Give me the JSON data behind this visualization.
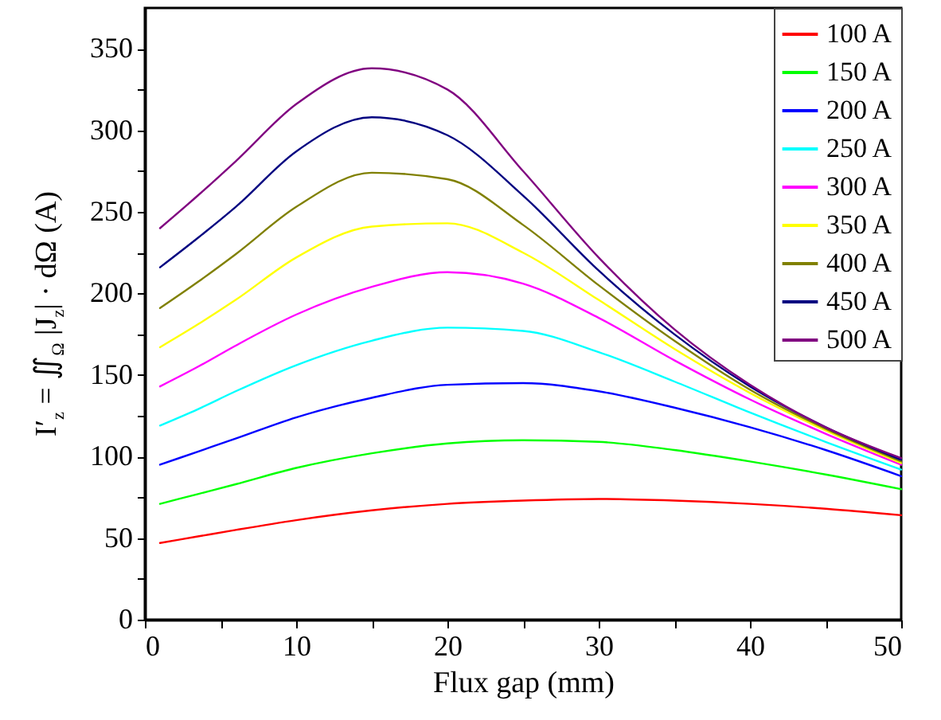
{
  "chart_data": {
    "type": "line",
    "xlabel": "Flux gap (mm)",
    "ylabel": "I′$_{z}$ = ∬$_{Ω}$ |J$_{z}$| · dΩ (A)",
    "x": [
      1,
      3.5,
      6,
      10,
      15,
      20,
      25,
      30,
      35,
      40,
      45,
      50
    ],
    "series": [
      {
        "name": "100 A",
        "color": "#ff0000",
        "values": [
          47,
          51,
          55,
          61,
          67,
          71,
          73,
          74,
          73,
          71,
          68,
          64
        ]
      },
      {
        "name": "150 A",
        "color": "#00ff00",
        "values": [
          71,
          77,
          83,
          93,
          102,
          108,
          110,
          109,
          104,
          97,
          89,
          80
        ]
      },
      {
        "name": "200 A",
        "color": "#0000ff",
        "values": [
          95,
          103,
          111,
          124,
          136,
          144,
          145,
          140,
          130,
          118,
          104,
          88
        ]
      },
      {
        "name": "250 A",
        "color": "#00ffff",
        "values": [
          119,
          129,
          140,
          156,
          171,
          179,
          177,
          164,
          146,
          127,
          109,
          92
        ]
      },
      {
        "name": "300 A",
        "color": "#ff00ff",
        "values": [
          143,
          155,
          168,
          187,
          204,
          213,
          206,
          185,
          159,
          135,
          114,
          95
        ]
      },
      {
        "name": "350 A",
        "color": "#ffff00",
        "values": [
          167,
          181,
          196,
          222,
          241,
          243,
          225,
          196,
          166,
          139,
          116,
          96
        ]
      },
      {
        "name": "400 A",
        "color": "#808000",
        "values": [
          191,
          207,
          224,
          253,
          274,
          270,
          242,
          205,
          171,
          141,
          117,
          97
        ]
      },
      {
        "name": "450 A",
        "color": "#000080",
        "values": [
          216,
          234,
          253,
          287,
          308,
          297,
          260,
          214,
          175,
          143,
          118,
          98
        ]
      },
      {
        "name": "500 A",
        "color": "#800080",
        "values": [
          240,
          260,
          281,
          316,
          338,
          325,
          275,
          222,
          178,
          144,
          118,
          99
        ]
      }
    ],
    "xlim": [
      0,
      50
    ],
    "xticks": [
      0,
      {
        "value": 5,
        "label": null
      },
      10,
      {
        "value": 15,
        "label": null
      },
      20,
      {
        "value": 25,
        "label": null
      },
      30,
      {
        "value": 35,
        "label": null
      },
      40,
      {
        "value": 45,
        "label": null
      },
      50
    ],
    "ylim": [
      0,
      375
    ],
    "yticks": [
      0,
      {
        "value": 25,
        "label": null
      },
      50,
      {
        "value": 75,
        "label": null
      },
      100,
      {
        "value": 125,
        "label": null
      },
      150,
      {
        "value": 175,
        "label": null
      },
      200,
      {
        "value": 225,
        "label": null
      },
      250,
      {
        "value": 275,
        "label": null
      },
      300,
      {
        "value": 325,
        "label": null
      },
      350
    ],
    "legend": "top right",
    "grid": false,
    "marker": "none",
    "line_style": "solid"
  }
}
